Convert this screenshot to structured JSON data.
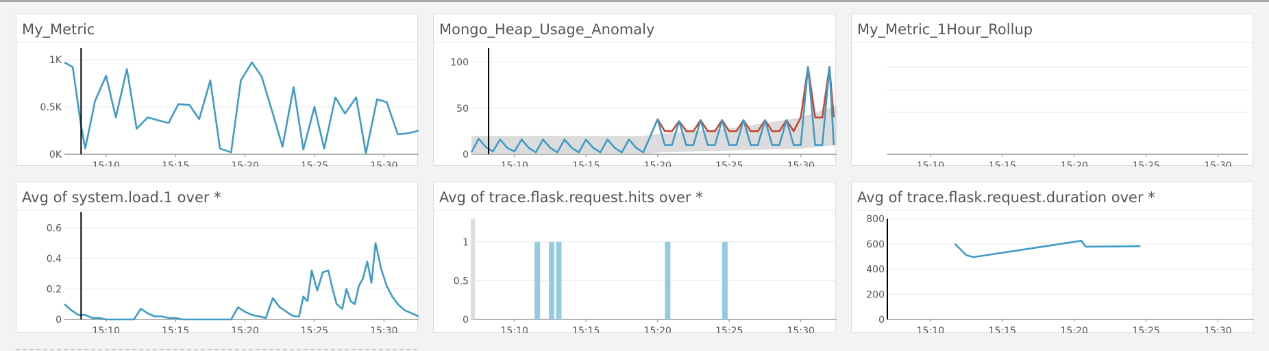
{
  "colors": {
    "series": "#3d9bc9",
    "anomaly": "#c8452f",
    "bar": "#95cbe2",
    "band": "#d3d3d3",
    "cursor": "#000000"
  },
  "widgets": [
    {
      "title": "My_Metric",
      "chart_data": {
        "type": "line",
        "title": "My_Metric",
        "xticks": [
          "15:10",
          "15:15",
          "15:20",
          "15:25",
          "15:30"
        ],
        "xtick_minutes": [
          10,
          15,
          20,
          25,
          30
        ],
        "xlim_minutes": [
          7,
          32.5
        ],
        "yticks": [
          "0K",
          "0.5K",
          "1K"
        ],
        "ytick_values": [
          0,
          500,
          1000
        ],
        "ylim": [
          0,
          1050
        ],
        "cursor_minute": 8.2,
        "series": [
          {
            "x": [
              7,
              7.6,
              8.2,
              8.5,
              9.2,
              10,
              10.7,
              11.5,
              12.2,
              13,
              13.7,
              14.5,
              15.2,
              16,
              16.7,
              17.5,
              18.2,
              19,
              19.7,
              20.5,
              21.2,
              22,
              22.7,
              23.5,
              24.2,
              25,
              25.7,
              26.5,
              27.2,
              28,
              28.7,
              29.5,
              30.2,
              31,
              31.7,
              32.5
            ],
            "y": [
              970,
              920,
              300,
              60,
              560,
              830,
              390,
              900,
              270,
              390,
              360,
              330,
              530,
              520,
              370,
              780,
              60,
              20,
              780,
              970,
              820,
              430,
              80,
              710,
              50,
              500,
              60,
              600,
              430,
              600,
              10,
              580,
              550,
              210,
              220,
              250
            ]
          }
        ]
      }
    },
    {
      "title": "Mongo_Heap_Usage_Anomaly",
      "chart_data": {
        "type": "line",
        "title": "Mongo_Heap_Usage_Anomaly",
        "xticks": [
          "15:10",
          "15:15",
          "15:20",
          "15:25",
          "15:30"
        ],
        "xtick_minutes": [
          10,
          15,
          20,
          25,
          30
        ],
        "xlim_minutes": [
          7,
          32.5
        ],
        "yticks": [
          "0",
          "50",
          "100"
        ],
        "ytick_values": [
          0,
          50,
          100
        ],
        "ylim": [
          0,
          108
        ],
        "cursor_minute": 8.2,
        "band_x": [
          7,
          19,
          20,
          25,
          30,
          32.5
        ],
        "band_low": [
          0,
          0,
          2,
          4,
          6,
          10
        ],
        "band_high": [
          20,
          20,
          22,
          28,
          40,
          53
        ],
        "series": [
          {
            "name": "",
            "x": [
              7,
              7.5,
              8,
              8.5,
              9,
              9.5,
              10,
              10.5,
              11,
              11.5,
              12,
              12.5,
              13,
              13.5,
              14,
              14.5,
              15,
              15.5,
              16,
              16.5,
              17,
              17.5,
              18,
              18.5,
              19,
              19.5,
              20,
              20.5,
              21,
              21.5,
              22,
              22.5,
              23,
              23.5,
              24,
              24.5,
              25,
              25.5,
              26,
              26.5,
              27,
              27.5,
              28,
              28.5,
              29,
              29.5,
              30,
              30.5,
              31,
              31.5,
              32,
              32.3
            ],
            "y": [
              2,
              17,
              8,
              3,
              16,
              7,
              3,
              16,
              7,
              2,
              16,
              7,
              2,
              16,
              7,
              2,
              16,
              7,
              2,
              16,
              7,
              2,
              16,
              7,
              2,
              20,
              38,
              10,
              10,
              36,
              10,
              10,
              37,
              10,
              10,
              37,
              10,
              10,
              37,
              10,
              10,
              37,
              10,
              10,
              37,
              10,
              10,
              95,
              10,
              10,
              95,
              10
            ],
            "anomaly_x": [
              19.5,
              20,
              20.5,
              21,
              21.5,
              22,
              22.5,
              23,
              23.5,
              24,
              24.5,
              25,
              25.5,
              26,
              26.5,
              27,
              27.5,
              28,
              28.5,
              29,
              29.5,
              30,
              30.5,
              31,
              31.5,
              32,
              32.3
            ],
            "anomaly_y": [
              20,
              38,
              25,
              25,
              36,
              25,
              25,
              37,
              25,
              25,
              37,
              25,
              25,
              37,
              25,
              25,
              37,
              25,
              25,
              37,
              25,
              40,
              95,
              40,
              40,
              95,
              40
            ]
          }
        ]
      }
    },
    {
      "title": "My_Metric_1Hour_Rollup",
      "chart_data": {
        "type": "line",
        "title": "My_Metric_1Hour_Rollup",
        "xticks": [
          "15:10",
          "15:15",
          "15:20",
          "15:25",
          "15:30"
        ],
        "xtick_minutes": [
          10,
          15,
          20,
          25,
          30
        ],
        "xlim_minutes": [
          7,
          32.5
        ],
        "yticks": [],
        "ytick_values": [],
        "ylim": [
          0,
          1
        ],
        "series": []
      }
    },
    {
      "title": "Avg of system.load.1 over *",
      "chart_data": {
        "type": "line",
        "title": "Avg of system.load.1 over *",
        "xticks": [
          "15:10",
          "15:15",
          "15:20",
          "15:25",
          "15:30"
        ],
        "xtick_minutes": [
          10,
          15,
          20,
          25,
          30
        ],
        "xlim_minutes": [
          7,
          32.5
        ],
        "yticks": [
          "0",
          "0.2",
          "0.4",
          "0.6"
        ],
        "ytick_values": [
          0,
          0.2,
          0.4,
          0.6
        ],
        "ylim": [
          0,
          0.66
        ],
        "cursor_minute": 8.2,
        "series": [
          {
            "x": [
              7,
              7.5,
              8,
              8.5,
              9,
              9.5,
              10,
              10.5,
              11,
              11.5,
              12,
              12.5,
              13,
              13.5,
              14,
              14.5,
              15,
              15.5,
              16,
              16.5,
              17,
              17.5,
              18,
              18.5,
              19,
              19.5,
              20,
              20.5,
              21,
              21.5,
              22,
              22.5,
              23,
              23.3,
              23.6,
              23.9,
              24.2,
              24.5,
              24.8,
              25.2,
              25.6,
              26,
              26.3,
              26.6,
              27,
              27.3,
              27.6,
              27.9,
              28.2,
              28.5,
              28.8,
              29.1,
              29.4,
              29.8,
              30.2,
              30.6,
              31,
              31.5,
              32,
              32.5
            ],
            "y": [
              0.1,
              0.06,
              0.03,
              0.03,
              0.01,
              0.01,
              0,
              0,
              0,
              0,
              0,
              0.07,
              0.04,
              0.02,
              0.02,
              0.01,
              0.01,
              0,
              0,
              0,
              0,
              0,
              0,
              0,
              0,
              0.08,
              0.05,
              0.03,
              0.02,
              0.01,
              0.14,
              0.08,
              0.05,
              0.03,
              0.02,
              0.02,
              0.15,
              0.12,
              0.32,
              0.19,
              0.31,
              0.32,
              0.2,
              0.1,
              0.07,
              0.2,
              0.12,
              0.1,
              0.22,
              0.27,
              0.38,
              0.24,
              0.5,
              0.33,
              0.22,
              0.15,
              0.1,
              0.06,
              0.04,
              0.02
            ]
          }
        ]
      }
    },
    {
      "title": "Avg of trace.flask.request.hits over *",
      "chart_data": {
        "type": "bar",
        "title": "Avg of trace.flask.request.hits over *",
        "xticks": [
          "15:10",
          "15:15",
          "15:20",
          "15:25",
          "15:30"
        ],
        "xtick_minutes": [
          10,
          15,
          20,
          25,
          30
        ],
        "xlim_minutes": [
          7,
          32.5
        ],
        "yticks": [
          "0",
          "0.5",
          "1"
        ],
        "ytick_values": [
          0,
          0.5,
          1
        ],
        "ylim": [
          0,
          1.3
        ],
        "edge_bar_minute": 7.1,
        "bars": [
          {
            "minute": 11.6,
            "value": 1
          },
          {
            "minute": 12.6,
            "value": 1
          },
          {
            "minute": 13.1,
            "value": 1
          },
          {
            "minute": 20.7,
            "value": 1
          },
          {
            "minute": 24.7,
            "value": 1
          }
        ]
      }
    },
    {
      "title": "Avg of trace.flask.request.duration over *",
      "chart_data": {
        "type": "line",
        "title": "Avg of trace.flask.request.duration over *",
        "xticks": [
          "15:10",
          "15:15",
          "15:20",
          "15:25",
          "15:30"
        ],
        "xtick_minutes": [
          10,
          15,
          20,
          25,
          30
        ],
        "xlim_minutes": [
          7,
          32.5
        ],
        "yticks": [
          "0",
          "200",
          "400",
          "600",
          "800"
        ],
        "ytick_values": [
          0,
          200,
          400,
          600,
          800
        ],
        "ylim": [
          0,
          800
        ],
        "series": [
          {
            "x": [
              11.7,
              12.5,
              13,
              20.5,
              20.8,
              24.6
            ],
            "y": [
              600,
              510,
              495,
              625,
              578,
              582
            ]
          }
        ]
      }
    }
  ]
}
